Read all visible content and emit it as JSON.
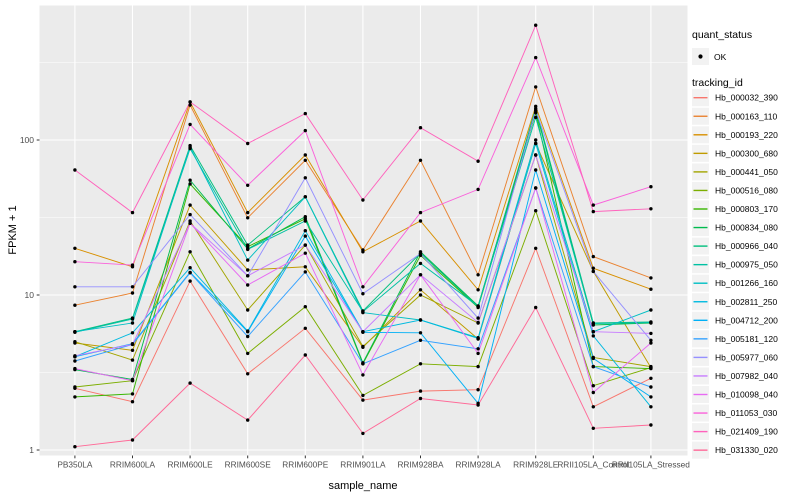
{
  "chart_data": {
    "type": "line",
    "title": "",
    "xlabel": "sample_name",
    "ylabel": "FPKM + 1",
    "y_scale": "log10",
    "y_tick_labels": [
      "1",
      "10",
      "100"
    ],
    "y_tick_values": [
      1,
      10,
      100
    ],
    "y_minor_tick_values": [
      3.162,
      31.623,
      316.23
    ],
    "ylim": [
      0.9,
      700
    ],
    "grid": "on",
    "legend_position": "right",
    "categories": [
      "PB350LA",
      "RRIM600LA",
      "RRIM600LE",
      "RRIM600SE",
      "RRIM600PE",
      "RRIM901LA",
      "RRIM928BA",
      "RRIM928LA",
      "RRIM928LE",
      "RRII105LA_Control",
      "RRII105LA_Stressed"
    ],
    "legend": {
      "quant_status_title": "quant_status",
      "quant_status_items": [
        "OK"
      ],
      "tracking_id_title": "tracking_id"
    },
    "colors": {
      "panel_bg": "#EBEBEB",
      "grid_major": "#FFFFFF",
      "grid_minor": "#F7F7F7",
      "point": "#000000",
      "tick": "#333333",
      "tick_label": "#4D4D4D",
      "legend_key_bg": "#F2F2F2"
    },
    "series": [
      {
        "name": "Hb_000032_390",
        "color": "#F8766D",
        "values": [
          2.5,
          2.05,
          12.3,
          3.1,
          6.1,
          2.1,
          2.4,
          2.45,
          20,
          1.9,
          2.9
        ]
      },
      {
        "name": "Hb_000163_110",
        "color": "#EA8331",
        "values": [
          8.6,
          10.3,
          168,
          31.5,
          74,
          19.5,
          74,
          13.5,
          220,
          17.7,
          12.9
        ]
      },
      {
        "name": "Hb_000193_220",
        "color": "#D89000",
        "values": [
          20,
          15.2,
          176,
          34,
          80,
          19.0,
          30,
          10.8,
          165,
          14.9,
          10.9
        ]
      },
      {
        "name": "Hb_000300_680",
        "color": "#C09B00",
        "values": [
          4.9,
          4.4,
          38,
          14.5,
          15.2,
          4.6,
          10.8,
          5.2,
          95,
          14.2,
          3.4
        ]
      },
      {
        "name": "Hb_000441_050",
        "color": "#A3A500",
        "values": [
          5.0,
          3.8,
          30,
          8.0,
          21,
          4.65,
          10.0,
          6.6,
          80,
          3.95,
          3.45
        ]
      },
      {
        "name": "Hb_000516_080",
        "color": "#7CAE00",
        "values": [
          2.55,
          2.8,
          19,
          4.2,
          8.4,
          2.25,
          3.6,
          3.45,
          35,
          2.6,
          3.4
        ]
      },
      {
        "name": "Hb_000803_170",
        "color": "#39B600",
        "values": [
          2.2,
          2.3,
          52,
          20.5,
          31,
          3.6,
          18,
          8.3,
          150,
          3.45,
          3.35
        ]
      },
      {
        "name": "Hb_000834_080",
        "color": "#00BB4E",
        "values": [
          3.3,
          2.85,
          55,
          19.8,
          32,
          3.65,
          19,
          8.5,
          155,
          6.4,
          6.6
        ]
      },
      {
        "name": "Hb_000966_040",
        "color": "#00BF7D",
        "values": [
          5.8,
          7.1,
          92,
          21,
          43,
          7.9,
          18.6,
          8.4,
          160,
          6.6,
          6.7
        ]
      },
      {
        "name": "Hb_000975_050",
        "color": "#00C1A3",
        "values": [
          5.75,
          7.0,
          88,
          19.7,
          30,
          7.8,
          16,
          8.45,
          140,
          6.55,
          6.65
        ]
      },
      {
        "name": "Hb_001266_160",
        "color": "#00BFC4",
        "values": [
          5.8,
          6.6,
          90,
          16.8,
          43,
          7.7,
          6.9,
          5.3,
          100,
          5.8,
          8.0
        ]
      },
      {
        "name": "Hb_002811_250",
        "color": "#00BAE0",
        "values": [
          4.0,
          5.7,
          15,
          5.85,
          26,
          5.8,
          6.9,
          5.25,
          95,
          5.45,
          1.9
        ]
      },
      {
        "name": "Hb_004712_200",
        "color": "#00B0F6",
        "values": [
          4.0,
          4.85,
          14,
          5.8,
          24,
          5.75,
          5.7,
          2.0,
          64,
          3.9,
          2.2
        ]
      },
      {
        "name": "Hb_005181_120",
        "color": "#35A2FF",
        "values": [
          3.75,
          4.8,
          13.9,
          5.4,
          14.1,
          3.6,
          5.1,
          4.5,
          49,
          3.45,
          2.55
        ]
      },
      {
        "name": "Hb_005977_060",
        "color": "#9590FF",
        "values": [
          11.3,
          11.3,
          33,
          13.3,
          57,
          10.2,
          18.5,
          7.1,
          155,
          14.2,
          5.1
        ]
      },
      {
        "name": "Hb_007982_040",
        "color": "#C77CFF",
        "values": [
          4.05,
          4.8,
          29,
          13.3,
          21,
          5.8,
          13.5,
          6.65,
          80,
          5.8,
          5.65
        ]
      },
      {
        "name": "Hb_010098_040",
        "color": "#E76BF3",
        "values": [
          3.35,
          2.8,
          29,
          11.6,
          18.6,
          3.05,
          13.5,
          4.2,
          49,
          2.35,
          4.9
        ]
      },
      {
        "name": "Hb_011053_030",
        "color": "#FA62DB",
        "values": [
          16.4,
          15.6,
          126,
          51,
          115,
          11.3,
          34,
          48,
          340,
          38,
          50
        ]
      },
      {
        "name": "Hb_021409_190",
        "color": "#FF62BC",
        "values": [
          64,
          34,
          176,
          95,
          148,
          41,
          120,
          73,
          550,
          34.5,
          36
        ]
      },
      {
        "name": "Hb_031330_020",
        "color": "#FF6A98",
        "values": [
          1.05,
          1.16,
          2.7,
          1.56,
          4.1,
          1.28,
          2.15,
          1.95,
          8.3,
          1.38,
          1.45
        ]
      }
    ]
  }
}
